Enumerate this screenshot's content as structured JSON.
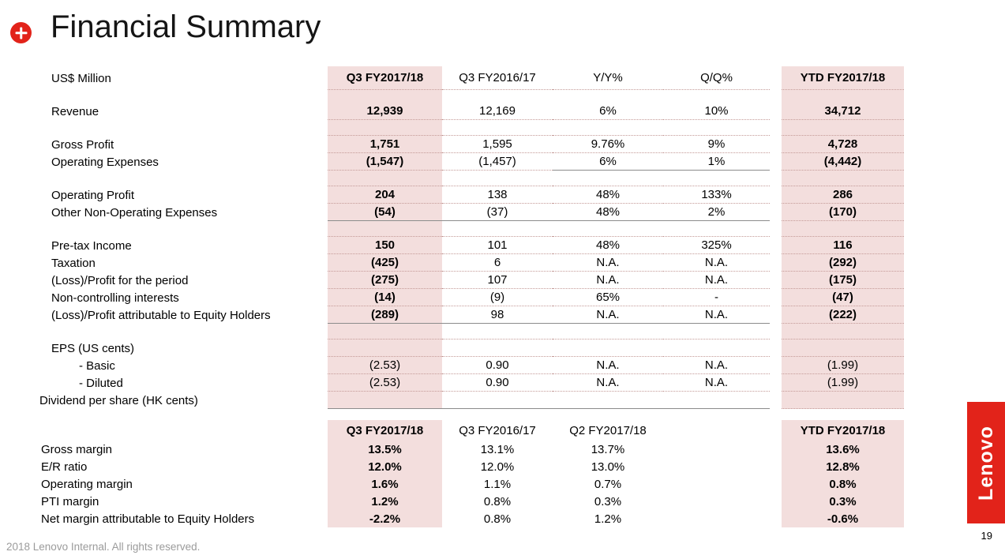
{
  "slide": {
    "title": "Financial Summary",
    "footer": "2018 Lenovo Internal. All rights reserved.",
    "page_number": "19",
    "logo_text": "Lenovo",
    "accent_color": "#e2231a",
    "highlight_color": "#f3dedd"
  },
  "icons": {
    "title_bullet": "plus-circle"
  },
  "pnl_table": {
    "unit_label": "US$ Million",
    "columns": [
      "Q3 FY2017/18",
      "Q3 FY2016/17",
      "Y/Y%",
      "Q/Q%",
      "YTD FY2017/18"
    ],
    "rows": [
      {
        "label": "Revenue",
        "v": [
          "12,939",
          "12,169",
          "6%",
          "10%",
          "34,712"
        ]
      },
      {
        "label": "Gross Profit",
        "v": [
          "1,751",
          "1,595",
          "9.76%",
          "9%",
          "4,728"
        ]
      },
      {
        "label": "Operating Expenses",
        "v": [
          "(1,547)",
          "(1,457)",
          "6%",
          "1%",
          "(4,442)"
        ]
      },
      {
        "label": "Operating Profit",
        "v": [
          "204",
          "138",
          "48%",
          "133%",
          "286"
        ]
      },
      {
        "label": "Other Non-Operating Expenses",
        "v": [
          "(54)",
          "(37)",
          "48%",
          "2%",
          "(170)"
        ]
      },
      {
        "label": "Pre-tax Income",
        "v": [
          "150",
          "101",
          "48%",
          "325%",
          "116"
        ]
      },
      {
        "label": "Taxation",
        "v": [
          "(425)",
          "6",
          "N.A.",
          "N.A.",
          "(292)"
        ]
      },
      {
        "label": "(Loss)/Profit for the period",
        "v": [
          "(275)",
          "107",
          "N.A.",
          "N.A.",
          "(175)"
        ]
      },
      {
        "label": "Non-controlling interests",
        "v": [
          "(14)",
          "(9)",
          "65%",
          "-",
          "(47)"
        ]
      },
      {
        "label": "(Loss)/Profit attributable to Equity Holders",
        "v": [
          "(289)",
          "98",
          "N.A.",
          "N.A.",
          "(222)"
        ]
      },
      {
        "label": "EPS (US cents)",
        "v": [
          "",
          "",
          "",
          "",
          ""
        ]
      },
      {
        "label": "- Basic",
        "v": [
          "(2.53)",
          "0.90",
          "N.A.",
          "N.A.",
          "(1.99)"
        ]
      },
      {
        "label": "- Diluted",
        "v": [
          "(2.53)",
          "0.90",
          "N.A.",
          "N.A.",
          "(1.99)"
        ]
      },
      {
        "label": "Dividend per share (HK cents)",
        "v": [
          "",
          "",
          "",
          "",
          ""
        ]
      }
    ]
  },
  "margin_table": {
    "columns": [
      "Q3 FY2017/18",
      "Q3 FY2016/17",
      "Q2 FY2017/18",
      "YTD FY2017/18"
    ],
    "rows": [
      {
        "label": "Gross margin",
        "v": [
          "13.5%",
          "13.1%",
          "13.7%",
          "13.6%"
        ]
      },
      {
        "label": "E/R ratio",
        "v": [
          "12.0%",
          "12.0%",
          "13.0%",
          "12.8%"
        ]
      },
      {
        "label": "Operating margin",
        "v": [
          "1.6%",
          "1.1%",
          "0.7%",
          "0.8%"
        ]
      },
      {
        "label": "PTI margin",
        "v": [
          "1.2%",
          "0.8%",
          "0.3%",
          "0.3%"
        ]
      },
      {
        "label": "Net margin attributable to Equity Holders",
        "v": [
          "-2.2%",
          "0.8%",
          "1.2%",
          "-0.6%"
        ]
      }
    ]
  }
}
